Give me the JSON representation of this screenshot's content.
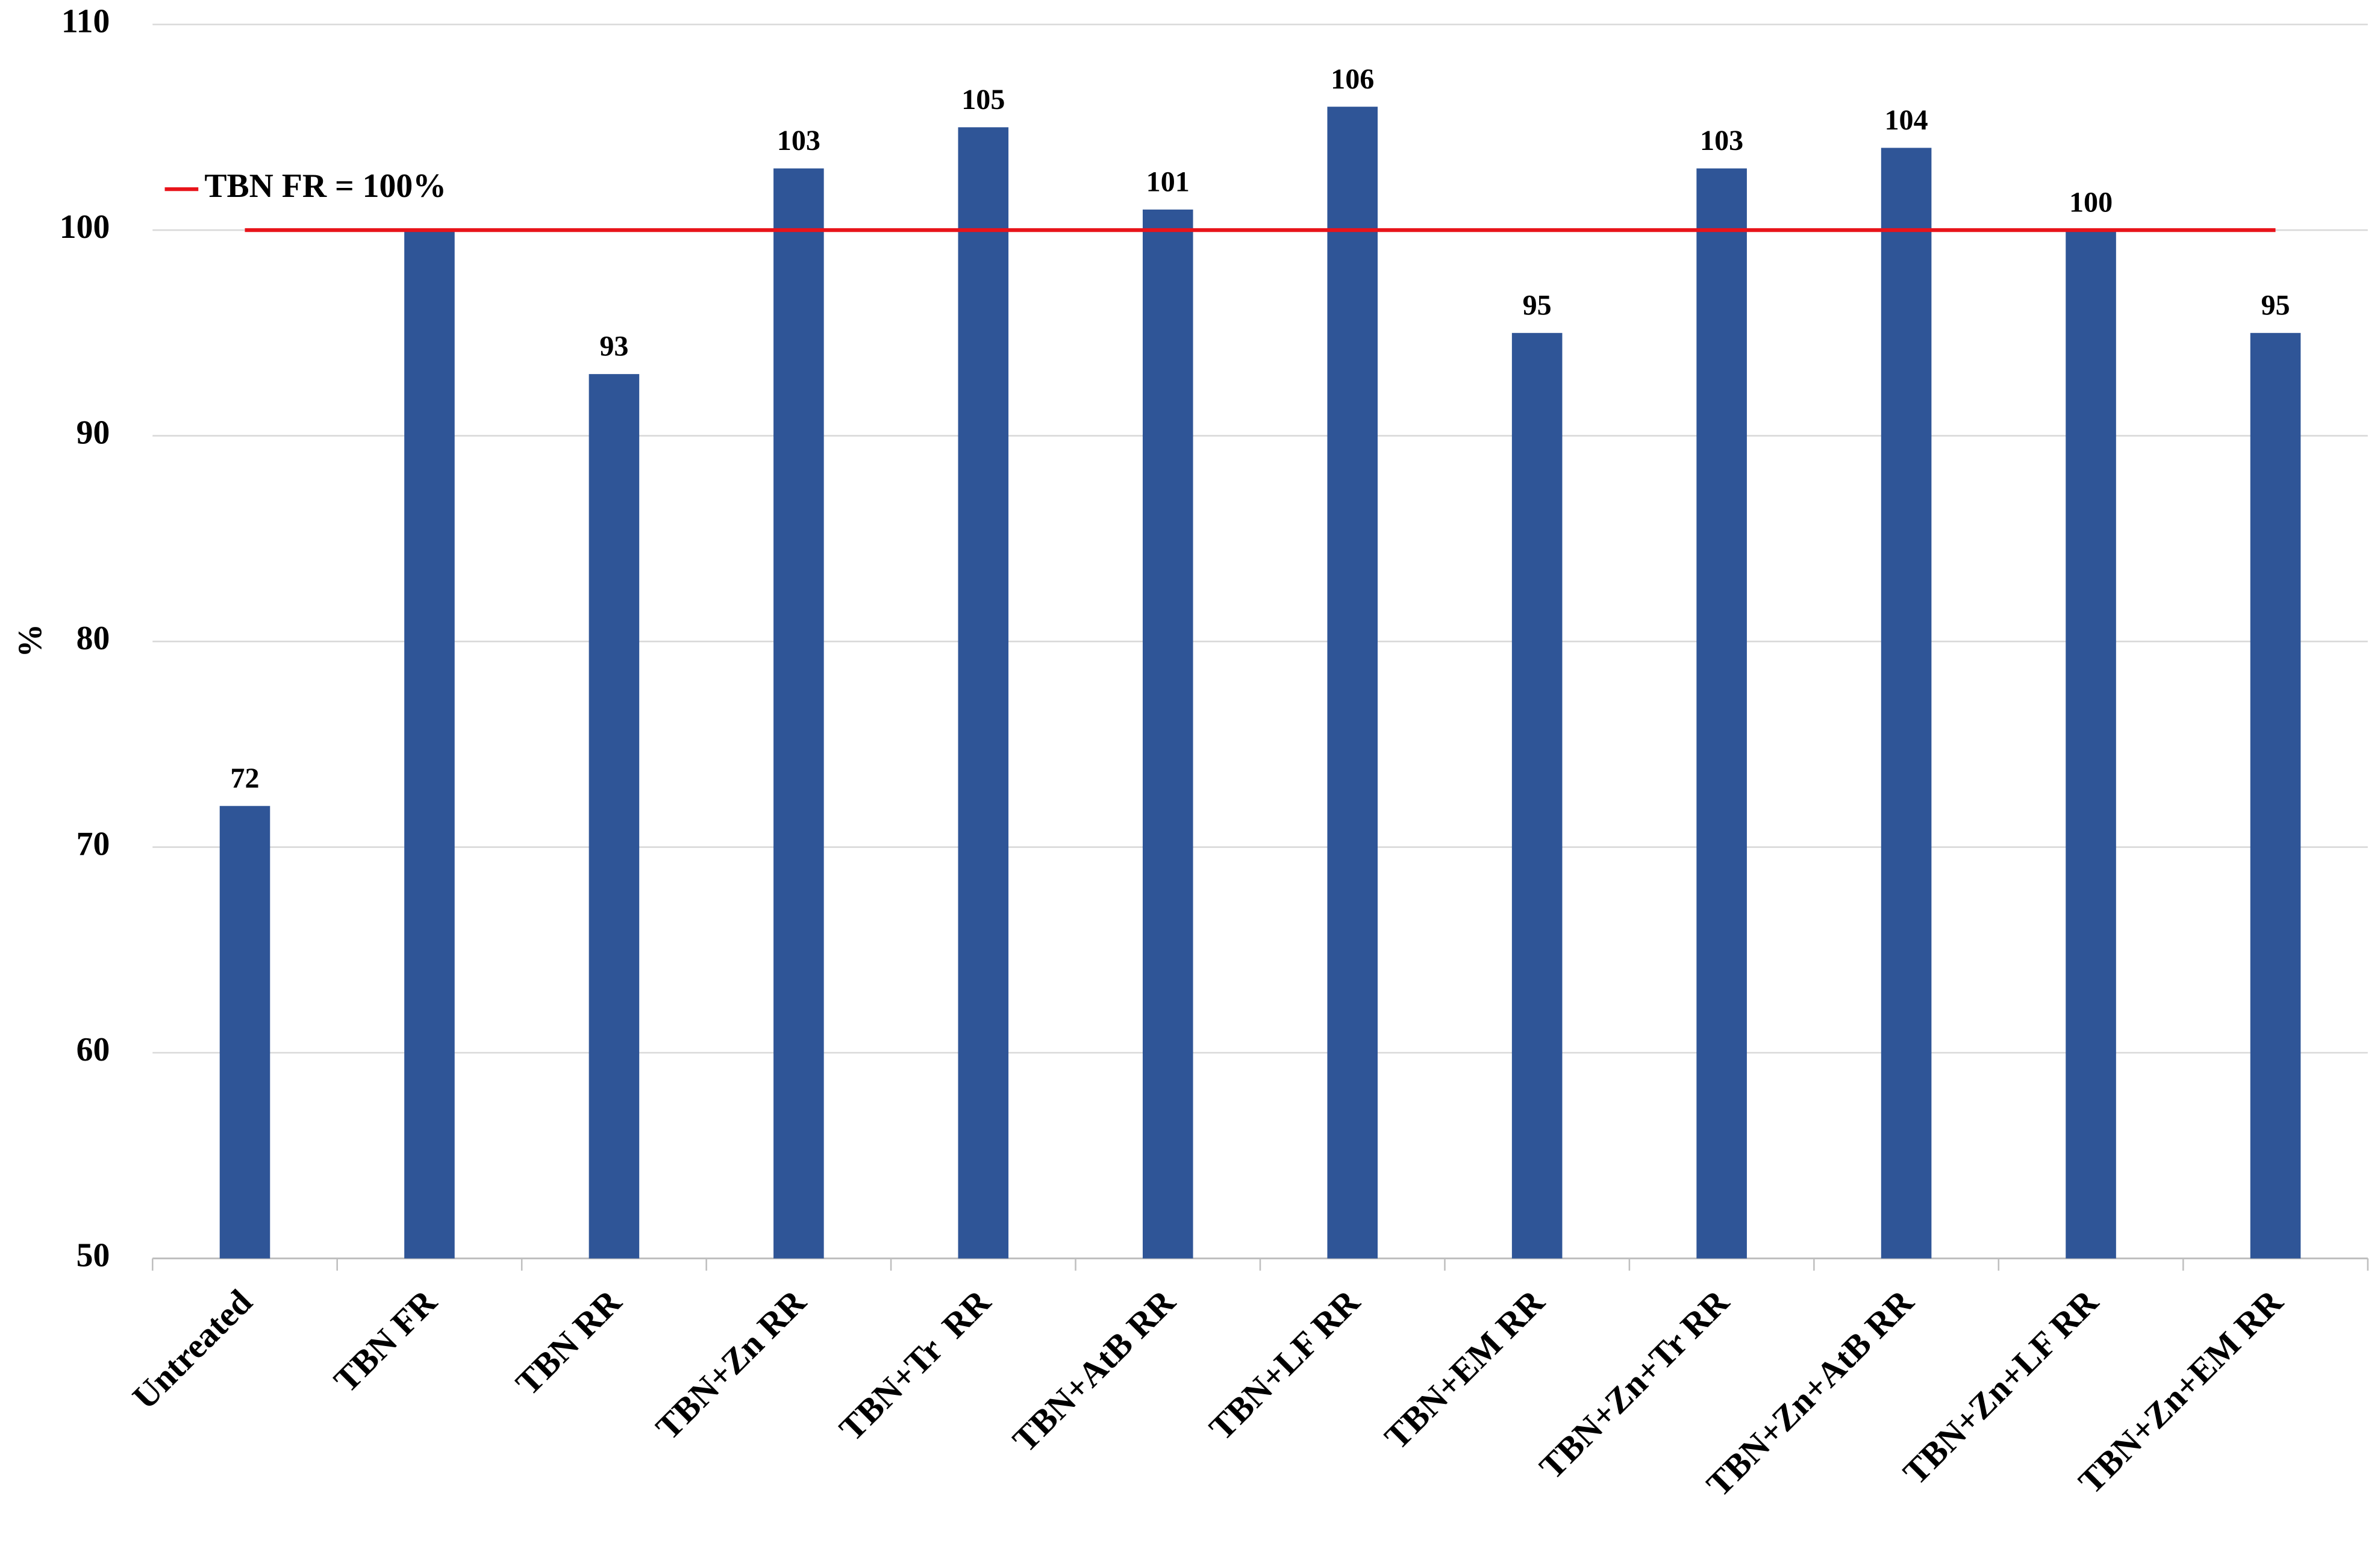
{
  "chart_data": {
    "type": "bar",
    "y_label": "%",
    "categories": [
      "Untreated",
      "TBN FR",
      "TBN RR",
      "TBN+Zn RR",
      "TBN+Tr  RR",
      "TBN+AtB RR",
      "TBN+LF RR",
      "TBN+EM RR",
      "TBN+Zn+Tr RR",
      "TBN+Zn+AtB RR",
      "TBN+Zn+LF RR",
      "TBN+Zn+EM RR"
    ],
    "values": [
      72,
      100,
      93,
      103,
      105,
      101,
      106,
      95,
      103,
      104,
      100,
      95
    ],
    "value_labels": [
      "72",
      null,
      "93",
      "103",
      "105",
      "101",
      "106",
      "95",
      "103",
      "104",
      "100",
      "95"
    ],
    "color": "#2f5597",
    "reference_line": {
      "value": 100,
      "label": "TBN FR = 100%",
      "color": "#e8141b"
    },
    "ylim": [
      50,
      110
    ],
    "yticks": [
      50,
      60,
      70,
      80,
      90,
      100,
      110
    ],
    "grid": true
  }
}
